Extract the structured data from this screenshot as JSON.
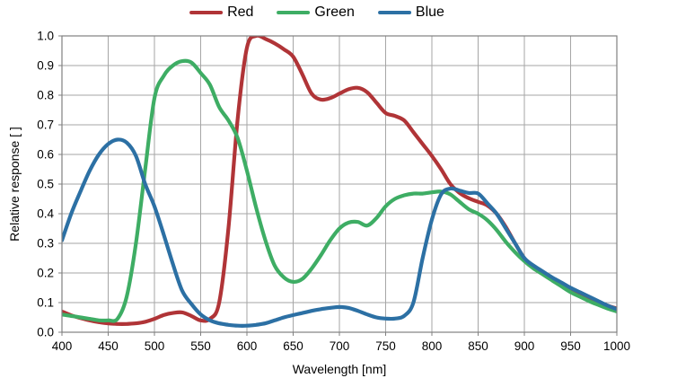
{
  "colors": {
    "background": "#ffffff",
    "grid": "#a6a6a6",
    "plot_border": "#808080",
    "tick_text": "#000000",
    "red_series": "#b03437",
    "green_series": "#3ead64",
    "blue_series": "#2c70a4"
  },
  "chart_data": {
    "type": "line",
    "title": "",
    "xlabel": "Wavelength [nm]",
    "ylabel": "Relative response [ ]",
    "xlim": [
      400,
      1000
    ],
    "ylim": [
      0,
      1
    ],
    "xticks": [
      400,
      450,
      500,
      550,
      600,
      650,
      700,
      750,
      800,
      850,
      900,
      950,
      1000
    ],
    "ytick_labels": [
      "0.0",
      "0.1",
      "0.2",
      "0.3",
      "0.4",
      "0.5",
      "0.6",
      "0.7",
      "0.8",
      "0.9",
      "1.0"
    ],
    "grid": true,
    "legend_position": "top-center",
    "x": [
      400,
      410,
      420,
      430,
      440,
      450,
      460,
      470,
      480,
      490,
      500,
      510,
      520,
      530,
      540,
      550,
      560,
      570,
      580,
      590,
      600,
      610,
      620,
      630,
      640,
      650,
      660,
      670,
      680,
      690,
      700,
      710,
      720,
      730,
      740,
      750,
      760,
      770,
      780,
      790,
      800,
      810,
      820,
      830,
      840,
      850,
      860,
      870,
      880,
      890,
      900,
      910,
      920,
      930,
      940,
      950,
      960,
      970,
      980,
      990,
      1000
    ],
    "series": [
      {
        "name": "Red",
        "color": "#b03437",
        "values": [
          0.07,
          0.057,
          0.048,
          0.04,
          0.034,
          0.03,
          0.028,
          0.028,
          0.03,
          0.035,
          0.045,
          0.058,
          0.065,
          0.067,
          0.055,
          0.04,
          0.045,
          0.1,
          0.35,
          0.72,
          0.96,
          1.0,
          0.99,
          0.975,
          0.955,
          0.93,
          0.87,
          0.805,
          0.785,
          0.79,
          0.805,
          0.82,
          0.825,
          0.81,
          0.775,
          0.74,
          0.73,
          0.715,
          0.675,
          0.635,
          0.595,
          0.55,
          0.5,
          0.47,
          0.452,
          0.44,
          0.428,
          0.4,
          0.355,
          0.3,
          0.25,
          0.222,
          0.2,
          0.18,
          0.163,
          0.148,
          0.132,
          0.117,
          0.102,
          0.09,
          0.08
        ]
      },
      {
        "name": "Green",
        "color": "#3ead64",
        "values": [
          0.06,
          0.055,
          0.05,
          0.045,
          0.04,
          0.04,
          0.045,
          0.12,
          0.3,
          0.55,
          0.79,
          0.865,
          0.9,
          0.915,
          0.91,
          0.875,
          0.835,
          0.76,
          0.715,
          0.655,
          0.545,
          0.42,
          0.31,
          0.225,
          0.185,
          0.17,
          0.18,
          0.215,
          0.26,
          0.31,
          0.35,
          0.37,
          0.372,
          0.36,
          0.385,
          0.425,
          0.45,
          0.462,
          0.468,
          0.468,
          0.472,
          0.475,
          0.465,
          0.44,
          0.415,
          0.4,
          0.378,
          0.345,
          0.305,
          0.27,
          0.24,
          0.215,
          0.195,
          0.175,
          0.155,
          0.135,
          0.12,
          0.105,
          0.092,
          0.08,
          0.07
        ]
      },
      {
        "name": "Blue",
        "color": "#2c70a4",
        "values": [
          0.31,
          0.4,
          0.475,
          0.545,
          0.6,
          0.635,
          0.65,
          0.64,
          0.595,
          0.5,
          0.425,
          0.33,
          0.23,
          0.14,
          0.095,
          0.06,
          0.04,
          0.03,
          0.025,
          0.022,
          0.022,
          0.025,
          0.03,
          0.04,
          0.05,
          0.058,
          0.065,
          0.072,
          0.078,
          0.082,
          0.085,
          0.082,
          0.072,
          0.06,
          0.05,
          0.046,
          0.046,
          0.055,
          0.1,
          0.25,
          0.38,
          0.465,
          0.485,
          0.478,
          0.47,
          0.468,
          0.435,
          0.4,
          0.35,
          0.3,
          0.25,
          0.225,
          0.205,
          0.185,
          0.168,
          0.15,
          0.135,
          0.12,
          0.105,
          0.09,
          0.078
        ]
      }
    ]
  }
}
